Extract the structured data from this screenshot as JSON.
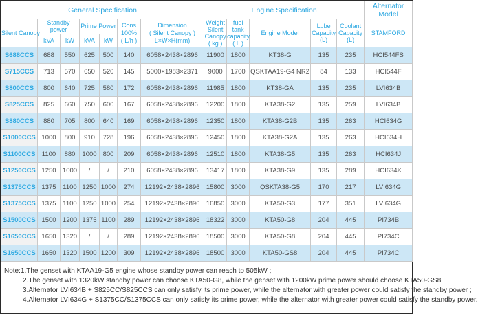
{
  "colors": {
    "accent_blue": "#29a6e0",
    "link_blue": "#2fa9e1",
    "row_stripe": "#cde7f6",
    "first_column_bg": "#f2f2f2",
    "grid_line": "#c9c9c9",
    "data_text": "#4d4d4d"
  },
  "table": {
    "sections": [
      "General Specification",
      "Engine Specification",
      "Alternator Model"
    ],
    "headers": {
      "silent_canopy": "Silent Canopy",
      "standby_power": "Standby power",
      "prime_power": "Prime Power",
      "kva_1": "kVA",
      "kw_1": "kW",
      "kva_2": "kVA",
      "kw_2": "kW",
      "cons": "Cons\n100%\n( L/h )",
      "dimension": "Dimension\n( Silent Canopy )\nL×W×H(mm)",
      "weight": "Weight\nSilent\nCanopy\n( kg )",
      "fuel_tank": "fuel tank\ncapacity\n( L )",
      "engine_model": "Engine Model",
      "lube_capacity": "Lube\nCapacity\n(L)",
      "coolant_capacity": "Coolant\nCapacity\n(L)",
      "stamford": "STAMFORD"
    },
    "rows": [
      [
        "S688CCS",
        "688",
        "550",
        "625",
        "500",
        "140",
        "6058×2438×2896",
        "11900",
        "1800",
        "KT38-G",
        "135",
        "235",
        "HCI544FS"
      ],
      [
        "S715CCS",
        "713",
        "570",
        "650",
        "520",
        "145",
        "5000×1983×2371",
        "9000",
        "1700",
        "QSKTAA19-G4 NR2",
        "84",
        "133",
        "HCI544F"
      ],
      [
        "S800CCS",
        "800",
        "640",
        "725",
        "580",
        "172",
        "6058×2438×2896",
        "11985",
        "1800",
        "KT38-GA",
        "135",
        "235",
        "LVI634B"
      ],
      [
        "S825CCS",
        "825",
        "660",
        "750",
        "600",
        "167",
        "6058×2438×2896",
        "12200",
        "1800",
        "KTA38-G2",
        "135",
        "259",
        "LVI634B"
      ],
      [
        "S880CCS",
        "880",
        "705",
        "800",
        "640",
        "169",
        "6058×2438×2896",
        "12350",
        "1800",
        "KTA38-G2B",
        "135",
        "263",
        "HCI634G"
      ],
      [
        "S1000CCS",
        "1000",
        "800",
        "910",
        "728",
        "196",
        "6058×2438×2896",
        "12450",
        "1800",
        "KTA38-G2A",
        "135",
        "263",
        "HCI634H"
      ],
      [
        "S1100CCS",
        "1100",
        "880",
        "1000",
        "800",
        "209",
        "6058×2438×2896",
        "12510",
        "1800",
        "KTA38-G5",
        "135",
        "263",
        "HCI634J"
      ],
      [
        "S1250CCS",
        "1250",
        "1000",
        "/",
        "/",
        "210",
        "6058×2438×2896",
        "13417",
        "1800",
        "KTA38-G9",
        "135",
        "289",
        "HCI634K"
      ],
      [
        "S1375CCS",
        "1375",
        "1100",
        "1250",
        "1000",
        "274",
        "12192×2438×2896",
        "15800",
        "3000",
        "QSKTA38-G5",
        "170",
        "217",
        "LVI634G"
      ],
      [
        "S1375CCS",
        "1375",
        "1100",
        "1250",
        "1000",
        "254",
        "12192×2438×2896",
        "16850",
        "3000",
        "KTA50-G3",
        "177",
        "351",
        "LVI634G"
      ],
      [
        "S1500CCS",
        "1500",
        "1200",
        "1375",
        "1100",
        "289",
        "12192×2438×2896",
        "18322",
        "3000",
        "KTA50-G8",
        "204",
        "445",
        "PI734B"
      ],
      [
        "S1650CCS",
        "1650",
        "1320",
        "/",
        "/",
        "289",
        "12192×2438×2896",
        "18500",
        "3000",
        "KTA50-G8",
        "204",
        "445",
        "PI734C"
      ],
      [
        "S1650CCS",
        "1650",
        "1320",
        "1500",
        "1200",
        "309",
        "12192×2438×2896",
        "18500",
        "3000",
        "KTA50-GS8",
        "204",
        "445",
        "PI734C"
      ]
    ]
  },
  "notes": [
    "Note:1.The genset with KTAA19-G5 engine whose standby power can reach to 505kW ;",
    "2.The genset with 1320kW standby power can choose KTA50-G8, while the genset with 1200kW prime power should choose KTA50-GS8 ;",
    "3.Alternator LVI634B + S825CC/S825CCS can only satisfy its prime power, while the alternator with greater power could satisfy the standby power ;",
    "4.Alternator LVI634G + S1375CC/S1375CCS can only satisfy its prime power, while the alternator with greater power could satisfy the standby power."
  ]
}
